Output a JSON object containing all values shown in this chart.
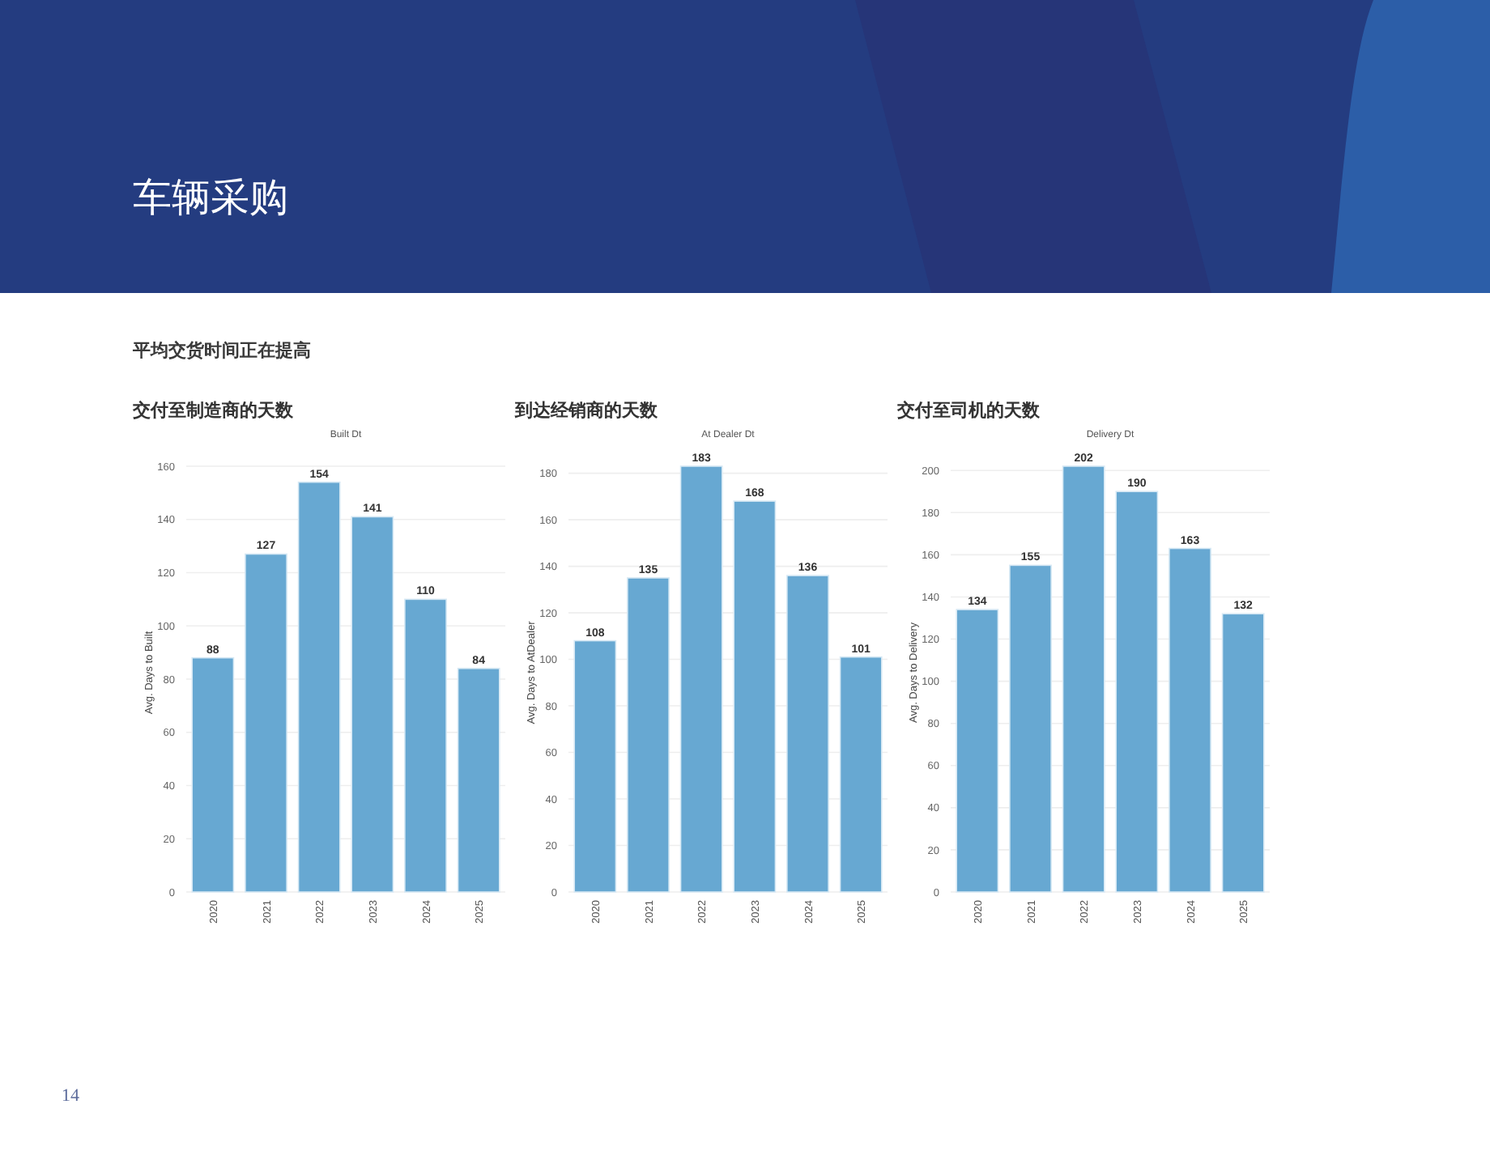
{
  "chart_data": [
    {
      "type": "bar",
      "title": "交付至制造商的天数",
      "subtitle": "Built Dt",
      "ylabel": "Avg. Days to Built",
      "categories": [
        "2020",
        "2021",
        "2022",
        "2023",
        "2024",
        "2025"
      ],
      "values": [
        88,
        127,
        154,
        141,
        110,
        84
      ],
      "color": "#67a8d2",
      "ylim": [
        0,
        160
      ],
      "yticks": [
        0,
        20,
        40,
        60,
        80,
        100,
        120,
        140,
        160
      ],
      "grid": "y",
      "data_labels": true,
      "annotations": [
        "车辆采购",
        "平均交货时间正在提高",
        "14"
      ]
    },
    {
      "type": "bar",
      "title": "到达经销商的天数",
      "subtitle": "At Dealer Dt",
      "ylabel": "Avg. Days to AtDealer",
      "categories": [
        "2020",
        "2021",
        "2022",
        "2023",
        "2024",
        "2025"
      ],
      "values": [
        108,
        135,
        183,
        168,
        136,
        101
      ],
      "color": "#67a8d2",
      "ylim": [
        0,
        183
      ],
      "yticks": [
        0,
        20,
        40,
        60,
        80,
        100,
        120,
        140,
        160,
        180
      ],
      "grid": "y",
      "data_labels": true
    },
    {
      "type": "bar",
      "title": "交付至司机的天数",
      "subtitle": "Delivery Dt",
      "ylabel": "Avg. Days to Delivery",
      "categories": [
        "2020",
        "2021",
        "2022",
        "2023",
        "2024",
        "2025"
      ],
      "values": [
        134,
        155,
        202,
        190,
        163,
        132
      ],
      "color": "#67a8d2",
      "ylim": [
        0,
        202
      ],
      "yticks": [
        0,
        20,
        40,
        60,
        80,
        100,
        120,
        140,
        160,
        180,
        200
      ],
      "grid": "y",
      "data_labels": true
    }
  ]
}
